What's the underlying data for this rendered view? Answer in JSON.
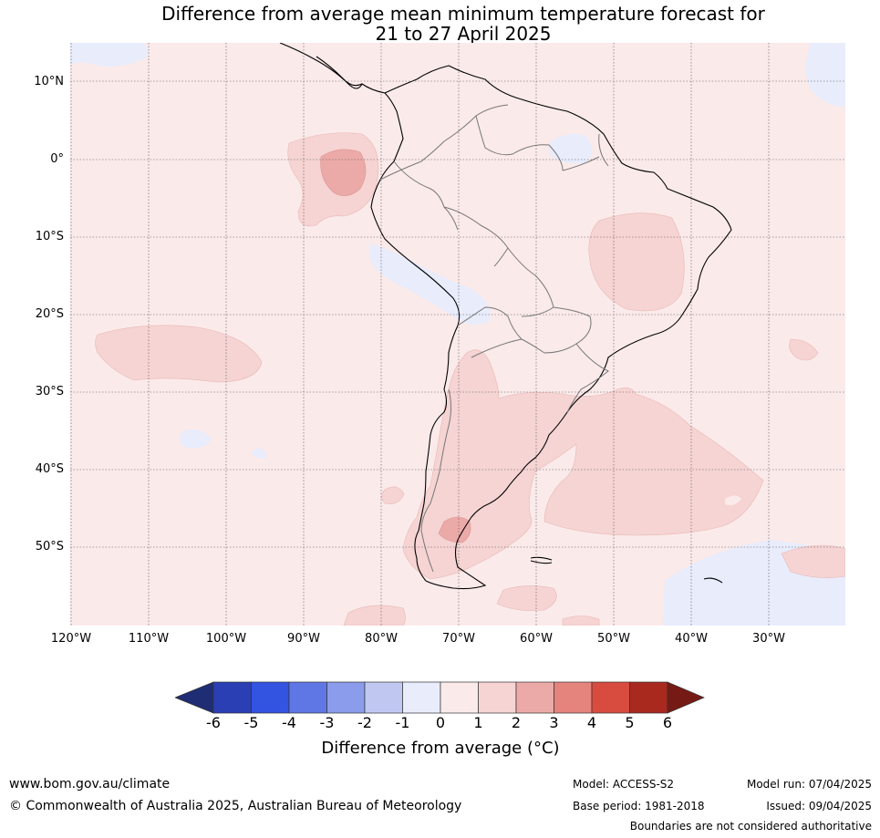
{
  "title_line1": "Difference from average mean minimum temperature forecast for",
  "title_line2": "21 to 27 April 2025",
  "map": {
    "lat_labels": [
      "10°N",
      "0°",
      "10°S",
      "20°S",
      "30°S",
      "40°S",
      "50°S"
    ],
    "lon_labels": [
      "120°W",
      "110°W",
      "100°W",
      "90°W",
      "80°W",
      "70°W",
      "60°W",
      "50°W",
      "40°W",
      "30°W"
    ]
  },
  "colorbar": {
    "ticks": [
      "-6",
      "-5",
      "-4",
      "-3",
      "-2",
      "-1",
      "0",
      "1",
      "2",
      "3",
      "4",
      "5",
      "6"
    ],
    "colors": [
      "#1f2d74",
      "#2a3fb3",
      "#3353e1",
      "#5f77e4",
      "#8a9ceb",
      "#c0c8f2",
      "#e8ecfb",
      "#fbeaea",
      "#f5d4d3",
      "#ebaaa8",
      "#e5837d",
      "#d84c3f",
      "#a9291f",
      "#761a15"
    ],
    "label": "Difference from average (°C)"
  },
  "footer": {
    "website": "www.bom.gov.au/climate",
    "copyright": "© Commonwealth of Australia 2025, Australian Bureau of Meteorology",
    "model": "Model: ACCESS-S2",
    "base_period": "Base period: 1981-2018",
    "model_run": "Model run: 07/04/2025",
    "issued": "Issued: 09/04/2025",
    "disclaimer": "Boundaries are not considered authoritative"
  }
}
